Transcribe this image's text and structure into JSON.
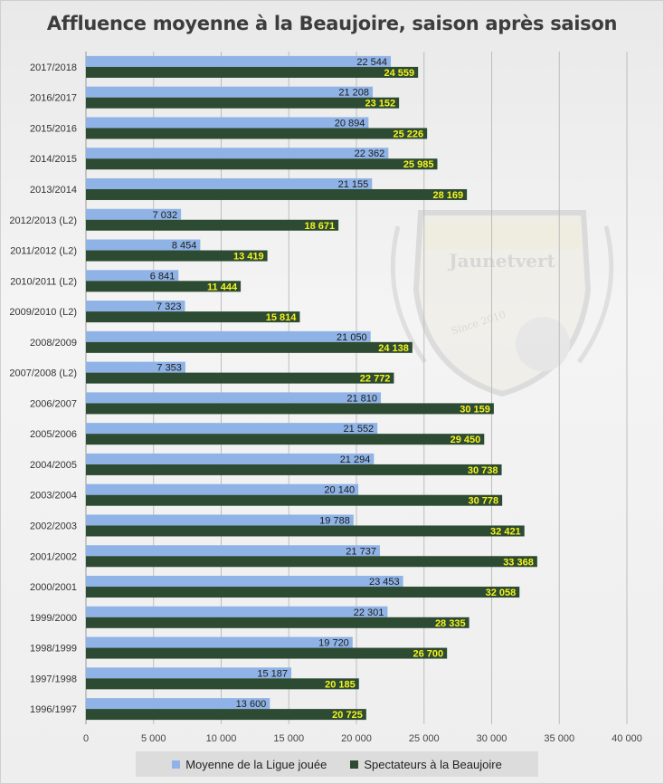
{
  "chart_data": {
    "type": "bar",
    "orientation": "horizontal",
    "title": "Affluence moyenne à la Beaujoire, saison après saison",
    "categories": [
      "2017/2018",
      "2016/2017",
      "2015/2016",
      "2014/2015",
      "2013/2014",
      "2012/2013 (L2)",
      "2011/2012 (L2)",
      "2010/2011 (L2)",
      "2009/2010 (L2)",
      "2008/2009",
      "2007/2008 (L2)",
      "2006/2007",
      "2005/2006",
      "2004/2005",
      "2003/2004",
      "2002/2003",
      "2001/2002",
      "2000/2001",
      "1999/2000",
      "1998/1999",
      "1997/1998",
      "1996/1997"
    ],
    "series": [
      {
        "name": "Moyenne de la Ligue jouée",
        "color": "#8fb3e6",
        "values": [
          22544,
          21208,
          20894,
          22362,
          21155,
          7032,
          8454,
          6841,
          7323,
          21050,
          7353,
          21810,
          21552,
          21294,
          20140,
          19788,
          21737,
          23453,
          22301,
          19720,
          15187,
          13600
        ],
        "labels": [
          "22 544",
          "21 208",
          "20 894",
          "22 362",
          "21 155",
          "7 032",
          "8 454",
          "6 841",
          "7 323",
          "21 050",
          "7 353",
          "21 810",
          "21 552",
          "21 294",
          "20 140",
          "19 788",
          "21 737",
          "23 453",
          "22 301",
          "19 720",
          "15 187",
          "13 600"
        ]
      },
      {
        "name": "Spectateurs à la Beaujoire",
        "color": "#2d4a32",
        "values": [
          24559,
          23152,
          25226,
          25985,
          28169,
          18671,
          13419,
          11444,
          15814,
          24138,
          22772,
          30159,
          29450,
          30738,
          30778,
          32421,
          33368,
          32058,
          28335,
          26700,
          20185,
          20725
        ],
        "labels": [
          "24 559",
          "23 152",
          "25 226",
          "25 985",
          "28 169",
          "18 671",
          "13 419",
          "11 444",
          "15 814",
          "24 138",
          "22 772",
          "30 159",
          "29 450",
          "30 738",
          "30 778",
          "32 421",
          "33 368",
          "32 058",
          "28 335",
          "26 700",
          "20 185",
          "20 725"
        ]
      }
    ],
    "xlim": [
      0,
      40000
    ],
    "xticks": [
      0,
      5000,
      10000,
      15000,
      20000,
      25000,
      30000,
      35000,
      40000
    ],
    "xtick_labels": [
      "0",
      "5 000",
      "10 000",
      "15 000",
      "20 000",
      "25 000",
      "30 000",
      "35 000",
      "40 000"
    ],
    "grid": "vertical",
    "legend_position": "bottom",
    "xlabel": "",
    "ylabel": ""
  },
  "watermark": {
    "text": "Jaunetvert",
    "subtext": "Since 2010"
  }
}
